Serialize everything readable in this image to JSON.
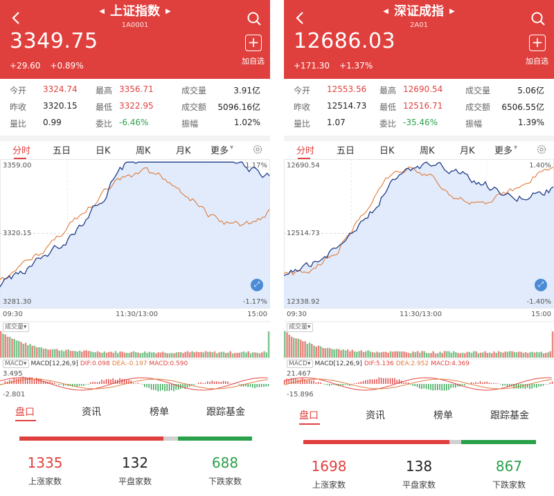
{
  "panels": [
    {
      "title": "上证指数",
      "code": "1A0001",
      "price": "3349.75",
      "change": "+29.60",
      "change_pct": "+0.89%",
      "add_label": "加自选",
      "add_symbol": "+",
      "stats": [
        [
          {
            "label": "今开",
            "value": "3324.74",
            "color": "red"
          },
          {
            "label": "最高",
            "value": "3356.71",
            "color": "red"
          },
          {
            "label": "成交量",
            "value": "3.91亿",
            "color": "black"
          }
        ],
        [
          {
            "label": "昨收",
            "value": "3320.15",
            "color": "black"
          },
          {
            "label": "最低",
            "value": "3322.95",
            "color": "red"
          },
          {
            "label": "成交额",
            "value": "5096.16亿",
            "color": "black"
          }
        ],
        [
          {
            "label": "量比",
            "value": "0.99",
            "color": "black"
          },
          {
            "label": "委比",
            "value": "-6.46%",
            "color": "green"
          },
          {
            "label": "振幅",
            "value": "1.02%",
            "color": "black"
          }
        ]
      ],
      "tabs": [
        "分时",
        "五日",
        "日K",
        "周K",
        "月K",
        "更多"
      ],
      "chart": {
        "y_top": "3359.00",
        "y_mid": "3320.15",
        "y_bot": "3281.30",
        "pct_top": "1.17%",
        "pct_bot": "-1.17%",
        "x_start": "09:30",
        "x_mid": "11:30/13:00",
        "x_end": "15:00",
        "volume_tag": "成交量",
        "macd_tag": "MACD",
        "macd_params": "MACD[12,26,9]",
        "dif": "DIF:0.098",
        "dea": "DEA:-0.197",
        "macd": "MACD:0.590",
        "macd_top": "3.495",
        "macd_bot": "-2.801"
      },
      "bottom_tabs": [
        "盘口",
        "资讯",
        "榜单",
        "跟踪基金"
      ],
      "counts": {
        "up": "1335",
        "flat": "132",
        "down": "688",
        "up_label": "上涨家数",
        "flat_label": "平盘家数",
        "down_label": "下跌家数"
      },
      "ratio": {
        "up": 1335,
        "flat": 132,
        "down": 688
      }
    },
    {
      "title": "深证成指",
      "code": "2A01",
      "price": "12686.03",
      "change": "+171.30",
      "change_pct": "+1.37%",
      "add_label": "加自选",
      "add_symbol": "+",
      "stats": [
        [
          {
            "label": "今开",
            "value": "12553.56",
            "color": "red"
          },
          {
            "label": "最高",
            "value": "12690.54",
            "color": "red"
          },
          {
            "label": "成交量",
            "value": "5.06亿",
            "color": "black"
          }
        ],
        [
          {
            "label": "昨收",
            "value": "12514.73",
            "color": "black"
          },
          {
            "label": "最低",
            "value": "12516.71",
            "color": "red"
          },
          {
            "label": "成交额",
            "value": "6506.55亿",
            "color": "black"
          }
        ],
        [
          {
            "label": "量比",
            "value": "1.07",
            "color": "black"
          },
          {
            "label": "委比",
            "value": "-35.46%",
            "color": "green"
          },
          {
            "label": "振幅",
            "value": "1.39%",
            "color": "black"
          }
        ]
      ],
      "tabs": [
        "分时",
        "五日",
        "日K",
        "周K",
        "月K",
        "更多"
      ],
      "chart": {
        "y_top": "12690.54",
        "y_mid": "12514.73",
        "y_bot": "12338.92",
        "pct_top": "1.40%",
        "pct_bot": "-1.40%",
        "x_start": "09:30",
        "x_mid": "11:30/13:00",
        "x_end": "15:00",
        "volume_tag": "成交量",
        "macd_tag": "MACD",
        "macd_params": "MACD[12,26,9]",
        "dif": "DIF:5.136",
        "dea": "DEA:2.952",
        "macd": "MACD:4.369",
        "macd_top": "21.467",
        "macd_bot": "-15.896"
      },
      "bottom_tabs": [
        "盘口",
        "资讯",
        "榜单",
        "跟踪基金"
      ],
      "counts": {
        "up": "1698",
        "flat": "138",
        "down": "867",
        "up_label": "上涨家数",
        "flat_label": "平盘家数",
        "down_label": "下跌家数"
      },
      "ratio": {
        "up": 1698,
        "flat": 138,
        "down": 867
      }
    }
  ],
  "colors": {
    "brand_red": "#e0403d",
    "down_green": "#2aa04a",
    "index_line": "#e07a3a",
    "price_line": "#1f3c88",
    "area_fill": "#dce8fa"
  }
}
